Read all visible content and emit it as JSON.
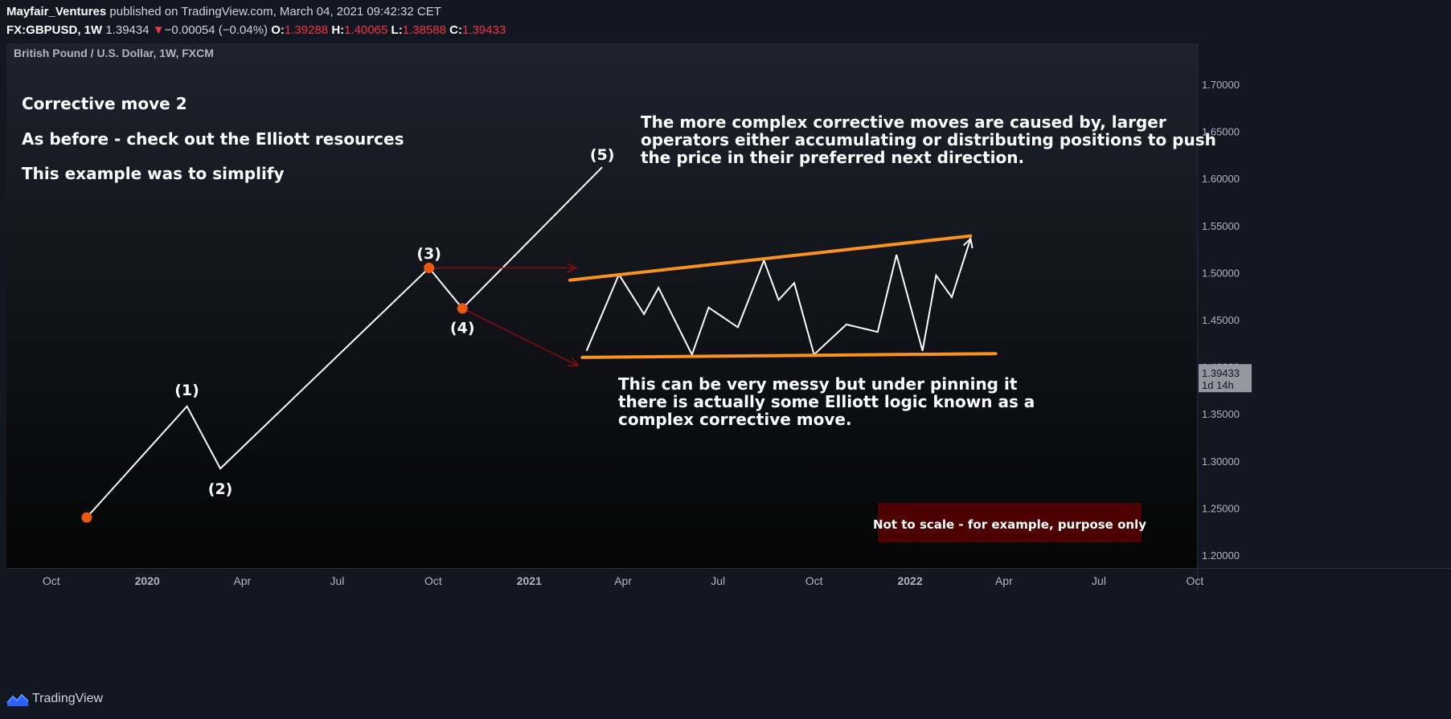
{
  "header": {
    "author": "Mayfair_Ventures",
    "published_text": "published on TradingView.com, March 04, 2021 09:42:32 CET",
    "symbol": "FX:GBPUSD, 1W",
    "last": "1.39434",
    "change_arrow": "▼",
    "change": "−0.00054 (−0.04%)",
    "open_label": "O:",
    "open": "1.39288",
    "high_label": "H:",
    "high": "1.40065",
    "low_label": "L:",
    "low": "1.38588",
    "close_label": "C:",
    "close": "1.39433"
  },
  "footer": {
    "brand": "TradingView"
  },
  "chart_data": {
    "type": "line",
    "title": "British Pound / U.S. Dollar, 1W, FXCM",
    "x_range": [
      "2019-08-19",
      "2022-10-03"
    ],
    "ylim": [
      1.18,
      1.72
    ],
    "y_ticks": [
      "1.20000",
      "1.25000",
      "1.30000",
      "1.35000",
      "1.40000",
      "1.45000",
      "1.50000",
      "1.55000",
      "1.60000",
      "1.65000",
      "1.70000"
    ],
    "x_ticks": [
      {
        "label": "Oct",
        "date": "2019-10-01",
        "bold": false
      },
      {
        "label": "2020",
        "date": "2020-01-01",
        "bold": true
      },
      {
        "label": "Apr",
        "date": "2020-04-01",
        "bold": false
      },
      {
        "label": "Jul",
        "date": "2020-07-01",
        "bold": false
      },
      {
        "label": "Oct",
        "date": "2020-10-01",
        "bold": false
      },
      {
        "label": "2021",
        "date": "2021-01-01",
        "bold": true
      },
      {
        "label": "Apr",
        "date": "2021-04-01",
        "bold": false
      },
      {
        "label": "Jul",
        "date": "2021-07-01",
        "bold": false
      },
      {
        "label": "Oct",
        "date": "2021-10-01",
        "bold": false
      },
      {
        "label": "2022",
        "date": "2022-01-01",
        "bold": true
      },
      {
        "label": "Apr",
        "date": "2022-04-01",
        "bold": false
      },
      {
        "label": "Jul",
        "date": "2022-07-01",
        "bold": false
      },
      {
        "label": "Oct",
        "date": "2022-10-01",
        "bold": false
      }
    ],
    "price_marker": {
      "value": 1.39433,
      "label": "1.39433",
      "countdown": "1d 14h"
    },
    "wave_path": [
      {
        "x": "2019-11-04",
        "y": 1.24
      },
      {
        "x": "2020-02-08",
        "y": 1.358
      },
      {
        "x": "2020-03-11",
        "y": 1.292
      },
      {
        "x": "2020-09-27",
        "y": 1.505
      },
      {
        "x": "2020-10-29",
        "y": 1.462
      },
      {
        "x": "2021-03-12",
        "y": 1.612
      }
    ],
    "wave_points": [
      {
        "x": "2019-11-04",
        "y": 1.24
      },
      {
        "x": "2020-09-27",
        "y": 1.505
      },
      {
        "x": "2020-10-29",
        "y": 1.462
      }
    ],
    "wave_labels": [
      {
        "text": "(1)",
        "x": "2020-02-08",
        "y": 1.375
      },
      {
        "text": "(2)",
        "x": "2020-03-11",
        "y": 1.27
      },
      {
        "text": "(3)",
        "x": "2020-09-27",
        "y": 1.52
      },
      {
        "text": "(4)",
        "x": "2020-10-29",
        "y": 1.441
      },
      {
        "text": "(5)",
        "x": "2021-03-12",
        "y": 1.625
      }
    ],
    "red_arrows": [
      {
        "from": {
          "x": "2020-09-27",
          "y": 1.505
        },
        "to": {
          "x": "2021-02-15",
          "y": 1.505
        }
      },
      {
        "from": {
          "x": "2020-10-29",
          "y": 1.462
        },
        "to": {
          "x": "2021-02-17",
          "y": 1.401
        }
      }
    ],
    "upper_trendline": [
      {
        "x": "2021-02-09",
        "y": 1.492
      },
      {
        "x": "2022-02-28",
        "y": 1.539
      }
    ],
    "lower_trendline": [
      {
        "x": "2021-02-21",
        "y": 1.41
      },
      {
        "x": "2022-03-24",
        "y": 1.414
      }
    ],
    "complex_path": [
      {
        "x": "2021-02-25",
        "y": 1.417
      },
      {
        "x": "2021-03-28",
        "y": 1.498
      },
      {
        "x": "2021-04-21",
        "y": 1.456
      },
      {
        "x": "2021-05-05",
        "y": 1.484
      },
      {
        "x": "2021-06-06",
        "y": 1.413
      },
      {
        "x": "2021-06-22",
        "y": 1.463
      },
      {
        "x": "2021-07-20",
        "y": 1.442
      },
      {
        "x": "2021-08-14",
        "y": 1.513
      },
      {
        "x": "2021-08-28",
        "y": 1.471
      },
      {
        "x": "2021-09-12",
        "y": 1.489
      },
      {
        "x": "2021-10-01",
        "y": 1.413
      },
      {
        "x": "2021-11-01",
        "y": 1.445
      },
      {
        "x": "2021-12-01",
        "y": 1.437
      },
      {
        "x": "2021-12-19",
        "y": 1.519
      },
      {
        "x": "2022-01-13",
        "y": 1.417
      },
      {
        "x": "2022-01-26",
        "y": 1.497
      },
      {
        "x": "2022-02-10",
        "y": 1.474
      },
      {
        "x": "2022-02-28",
        "y": 1.536
      }
    ],
    "annotations": {
      "left": [
        "Corrective move 2",
        "As before - check out the Elliott resources",
        "This example was to simplify"
      ],
      "top_right": [
        "The more complex corrective moves are caused by, larger",
        "operators either accumulating or distributing positions to push",
        "the price in their preferred next direction."
      ],
      "bottom": [
        "This can be very messy but under pinning it",
        "there is actually some Elliott logic known as a",
        "complex corrective move."
      ],
      "note_box": "Not to scale - for example, purpose only"
    },
    "colors": {
      "background": "#131722",
      "line": "#ffffff",
      "wave_point": "#e85a13",
      "trendline": "#f7931e",
      "red_arrow": "#8b0d0d",
      "note_box_bg": "#4d0000",
      "note_box_border": "#7a0000",
      "axis_text": "#b2b5be",
      "price_marker_bg": "#9598a1"
    },
    "grid": false
  }
}
